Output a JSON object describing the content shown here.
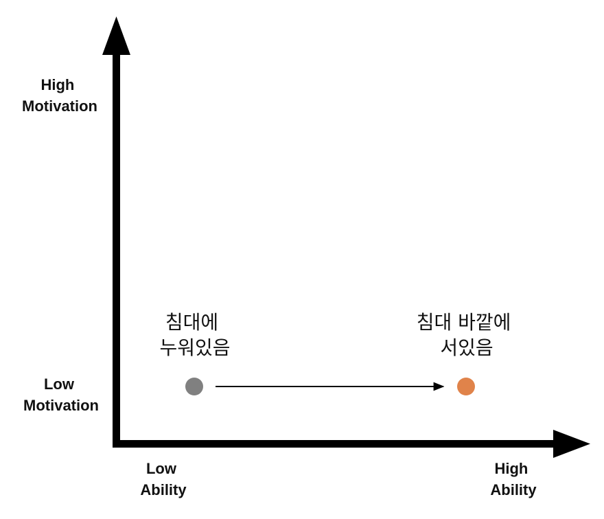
{
  "axes": {
    "y_high_label": [
      "High",
      "Motivation"
    ],
    "y_low_label": [
      "Low",
      "Motivation"
    ],
    "x_low_label": [
      "Low",
      "Ability"
    ],
    "x_high_label": [
      "High",
      "Ability"
    ]
  },
  "points": {
    "start": {
      "label": [
        "침대에",
        "누워있음"
      ],
      "color": "#808080"
    },
    "end": {
      "label": [
        "침대 바깥에",
        "서있음"
      ],
      "color": "#e0834a"
    }
  },
  "colors": {
    "axis": "#000000"
  }
}
